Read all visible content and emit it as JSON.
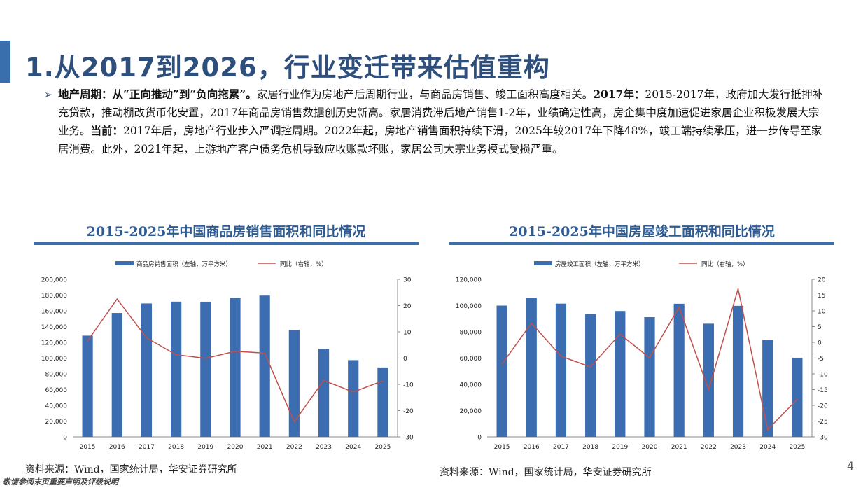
{
  "slide": {
    "title": "1.从2017到2026，行业变迁带来估值重构",
    "page_number": "4",
    "disclaimer": "敬请参阅末页重要声明及评级说明"
  },
  "body": {
    "bullet_icon": "arrow-right-icon",
    "bold1": "地产周期：从“正向推动”到“负向拖累”。",
    "text1": "家居行业作为房地产后周期行业，与商品房销售、竣工面积高度相关。",
    "bold2": "2017年：",
    "text2": "2015-2017年，政府加大发行抵押补充贷款，推动棚改货币化安置，2017年商品房销售数据创历史新高。家居消费滞后地产销售1-2年，业绩确定性高，房企集中度加速促进家居企业积极发展大宗业务。",
    "bold3": "当前：",
    "text3": "2017年后，房地产行业步入严调控周期。2022年起，房地产销售面积持续下滑，2025年较2017年下降48%，竣工端持续承压，进一步传导至家居消费。此外，2021年起，上游地产客户债务危机导致应收账款坏账，家居公司大宗业务模式受损严重。"
  },
  "colors": {
    "bar": "#3b6db0",
    "line": "#c0504d",
    "accent": "#2e5b92"
  },
  "chart_data": [
    {
      "type": "bar",
      "title": "2015-2025年中国商品房销售面积和同比情况",
      "categories": [
        "2015",
        "2016",
        "2017",
        "2018",
        "2019",
        "2020",
        "2021",
        "2022",
        "2023",
        "2024",
        "2025"
      ],
      "series": [
        {
          "name": "商品房销售面积（左轴，万平方米）",
          "type": "bar",
          "axis": "left",
          "values": [
            128500,
            157300,
            169400,
            171700,
            171600,
            176100,
            179400,
            135800,
            111700,
            97400,
            88100
          ]
        },
        {
          "name": "同比（右轴，%）",
          "type": "line",
          "axis": "right",
          "values": [
            6.5,
            22.5,
            7.7,
            1.3,
            -0.1,
            2.6,
            1.9,
            -24.3,
            -8.5,
            -12.9,
            -8.7
          ]
        }
      ],
      "ylim_left": [
        0,
        200000
      ],
      "ylim_right": [
        -30,
        30
      ],
      "yticks_left": [
        "200,000",
        "180,000",
        "160,000",
        "140,000",
        "120,000",
        "100,000",
        "80,000",
        "60,000",
        "40,000",
        "20,000",
        "0"
      ],
      "yticks_right": [
        "30",
        "20",
        "10",
        "0",
        "-10",
        "-20",
        "-30"
      ],
      "legend_position": "top",
      "source": "资料来源：Wind，国家统计局，华安证券研究所"
    },
    {
      "type": "bar",
      "title": "2015-2025年中国房屋竣工面积和同比情况",
      "categories": [
        "2015",
        "2016",
        "2017",
        "2018",
        "2019",
        "2020",
        "2021",
        "2022",
        "2023",
        "2024",
        "2025"
      ],
      "series": [
        {
          "name": "房屋竣工面积（左轴，万平方米）",
          "type": "bar",
          "axis": "left",
          "values": [
            100000,
            106100,
            101500,
            93600,
            95900,
            91200,
            101400,
            86200,
            99800,
            73700,
            60300
          ]
        },
        {
          "name": "同比（右轴，%）",
          "type": "line",
          "axis": "right",
          "values": [
            -6.9,
            6.1,
            -4.4,
            -7.8,
            2.6,
            -4.9,
            11.2,
            -15.0,
            17.0,
            -27.7,
            -18.1
          ]
        }
      ],
      "ylim_left": [
        0,
        120000
      ],
      "ylim_right": [
        -30,
        20
      ],
      "yticks_left": [
        "120,000",
        "100,000",
        "80,000",
        "60,000",
        "40,000",
        "20,000",
        "0"
      ],
      "yticks_right": [
        "20",
        "15",
        "10",
        "5",
        "0",
        "-5",
        "-10",
        "-15",
        "-20",
        "-25",
        "-30"
      ],
      "legend_position": "top",
      "source": "资料来源：Wind，国家统计局，华安证券研究所"
    }
  ]
}
